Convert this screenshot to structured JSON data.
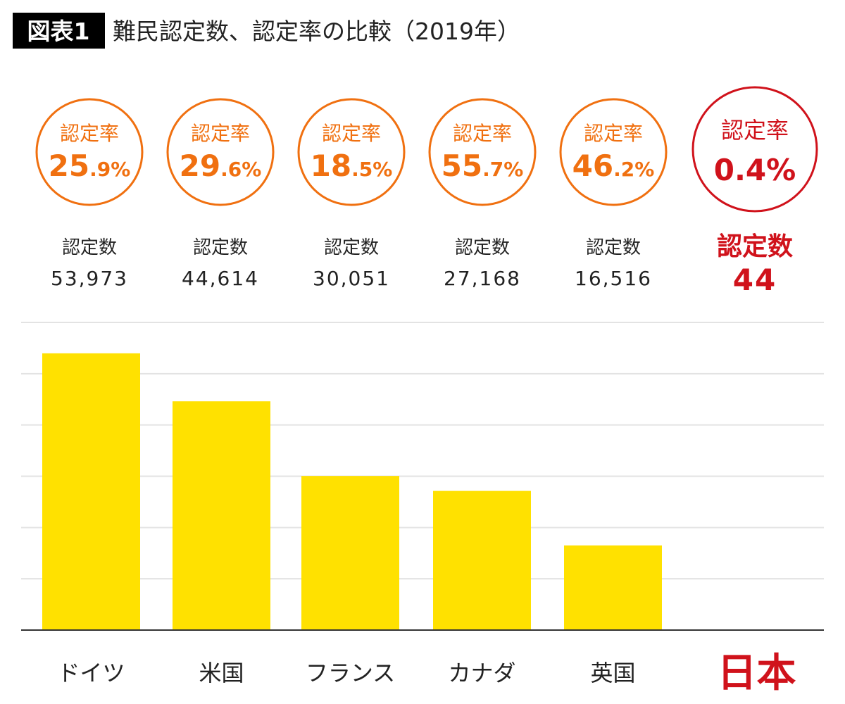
{
  "figure_label": "図表1",
  "chart_data": {
    "type": "bar",
    "title": "難民認定数、認定率の比較（2019年）",
    "categories": [
      "ドイツ",
      "米国",
      "フランス",
      "カナダ",
      "英国",
      "日本"
    ],
    "values": [
      53973,
      44614,
      30051,
      27168,
      16516,
      44
    ],
    "value_labels": [
      "53,973",
      "44,614",
      "30,051",
      "27,168",
      "16,516",
      "44"
    ],
    "count_label": "認定数",
    "rate_label": "認定率",
    "rates": [
      "25.9%",
      "29.6%",
      "18.5%",
      "55.7%",
      "46.2%",
      "0.4%"
    ],
    "highlight_category": "日本",
    "ylim": [
      0,
      60000
    ],
    "grid_step": 10000,
    "grid": true,
    "axis_tick_labels_shown": false,
    "colors": {
      "bar": "#ffe100",
      "rate_circle": "#f07010",
      "highlight": "#d0121b",
      "grid": "#e3e3e3",
      "title_box": "#000000"
    }
  }
}
